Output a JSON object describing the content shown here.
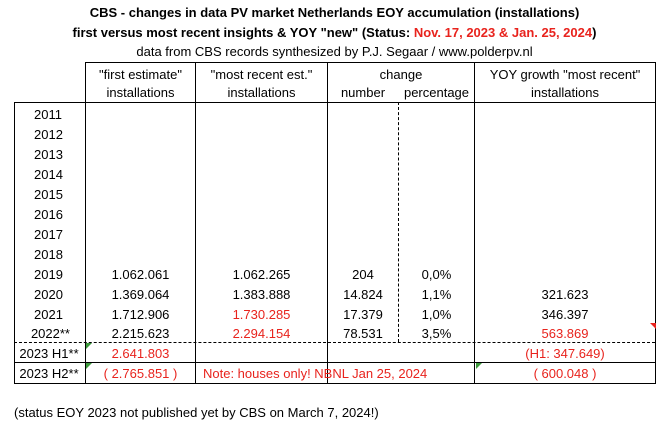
{
  "title": {
    "line1": "CBS - changes in data PV market Netherlands EOY accumulation (installations)",
    "line2_prefix": "first versus most recent insights & YOY \"new\" (Status: ",
    "line2_dates": "Nov. 17, 2023 & Jan. 25, 2024",
    "line2_suffix": ")",
    "line3": "data from CBS records synthesized by P.J. Segaar / www.polderpv.nl"
  },
  "headers": {
    "first_estimate": "\"first estimate\"",
    "first_installations": "installations",
    "most_recent": "\"most recent est.\"",
    "most_recent_installations": "installations",
    "change": "change",
    "number": "number",
    "percentage": "percentage",
    "yoy": "YOY growth  \"most recent\"",
    "yoy_installations": "installations"
  },
  "rows": [
    {
      "year": "2011",
      "first": "",
      "recent": "",
      "number": "",
      "pct": "",
      "yoy": ""
    },
    {
      "year": "2012",
      "first": "",
      "recent": "",
      "number": "",
      "pct": "",
      "yoy": ""
    },
    {
      "year": "2013",
      "first": "",
      "recent": "",
      "number": "",
      "pct": "",
      "yoy": ""
    },
    {
      "year": "2014",
      "first": "",
      "recent": "",
      "number": "",
      "pct": "",
      "yoy": ""
    },
    {
      "year": "2015",
      "first": "",
      "recent": "",
      "number": "",
      "pct": "",
      "yoy": ""
    },
    {
      "year": "2016",
      "first": "",
      "recent": "",
      "number": "",
      "pct": "",
      "yoy": ""
    },
    {
      "year": "2017",
      "first": "",
      "recent": "",
      "number": "",
      "pct": "",
      "yoy": ""
    },
    {
      "year": "2018",
      "first": "",
      "recent": "",
      "number": "",
      "pct": "",
      "yoy": ""
    },
    {
      "year": "2019",
      "first": "1.062.061",
      "recent": "1.062.265",
      "number": "204",
      "pct": "0,0%",
      "yoy": ""
    },
    {
      "year": "2020",
      "first": "1.369.064",
      "recent": "1.383.888",
      "number": "14.824",
      "pct": "1,1%",
      "yoy": "321.623"
    },
    {
      "year": "2021",
      "first": "1.712.906",
      "recent": "1.730.285",
      "number": "17.379",
      "pct": "1,0%",
      "yoy": "346.397"
    },
    {
      "year": "2022**",
      "first": "2.215.623",
      "recent": "2.294.154",
      "number": "78.531",
      "pct": "3,5%",
      "yoy": "563.869"
    }
  ],
  "h1": {
    "label": "2023 H1**",
    "first": "2.641.803",
    "yoy": "(H1: 347.649)"
  },
  "h2": {
    "label": "2023 H2**",
    "first": "( 2.765.851 )",
    "note": "Note: houses only! NBNL Jan 25, 2024",
    "yoy": "( 600.048 )"
  },
  "footnote": "(status EOY 2023 not published yet by CBS on March 7, 2024!)",
  "colors": {
    "accent_red": "#e8231d",
    "triangle_green": "#3c9a3c"
  }
}
